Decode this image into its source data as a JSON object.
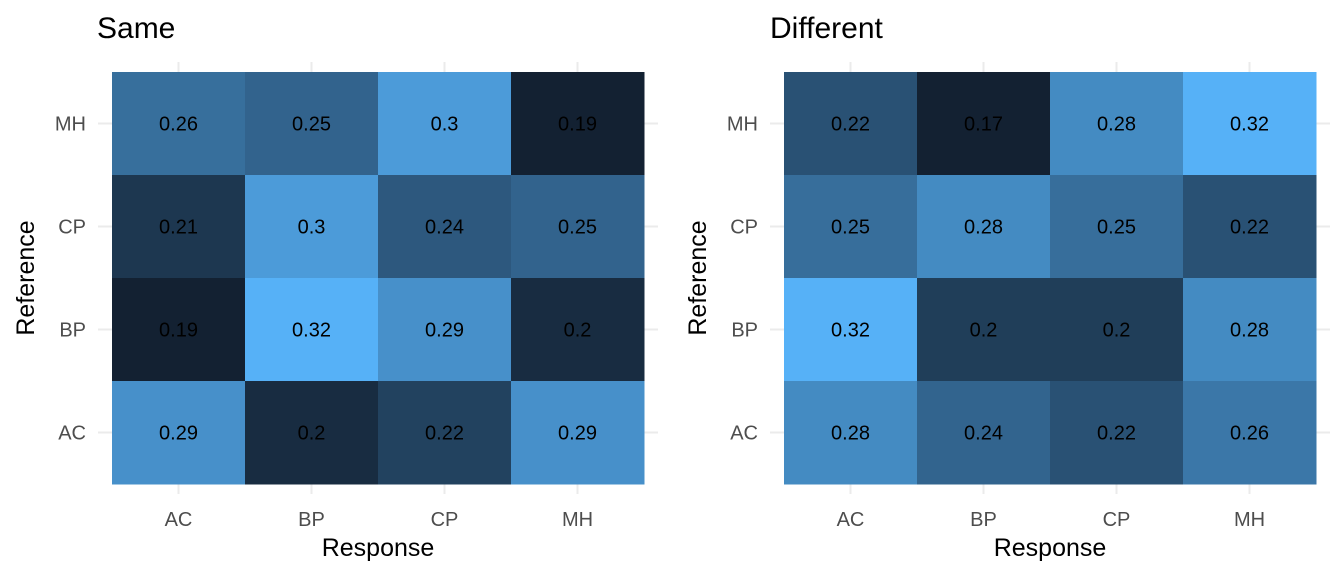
{
  "chart_data": [
    {
      "type": "heatmap",
      "title": "Same",
      "xlabel": "Response",
      "ylabel": "Reference",
      "x_categories": [
        "AC",
        "BP",
        "CP",
        "MH"
      ],
      "y_categories": [
        "AC",
        "BP",
        "CP",
        "MH"
      ],
      "fill_low": "#132132",
      "fill_high": "#56b1f7",
      "cells": [
        {
          "x": "AC",
          "y": "MH",
          "value": 0.26
        },
        {
          "x": "BP",
          "y": "MH",
          "value": 0.25
        },
        {
          "x": "CP",
          "y": "MH",
          "value": 0.3
        },
        {
          "x": "MH",
          "y": "MH",
          "value": 0.19
        },
        {
          "x": "AC",
          "y": "CP",
          "value": 0.21
        },
        {
          "x": "BP",
          "y": "CP",
          "value": 0.3
        },
        {
          "x": "CP",
          "y": "CP",
          "value": 0.24
        },
        {
          "x": "MH",
          "y": "CP",
          "value": 0.25
        },
        {
          "x": "AC",
          "y": "BP",
          "value": 0.19
        },
        {
          "x": "BP",
          "y": "BP",
          "value": 0.32
        },
        {
          "x": "CP",
          "y": "BP",
          "value": 0.29
        },
        {
          "x": "MH",
          "y": "BP",
          "value": 0.2
        },
        {
          "x": "AC",
          "y": "AC",
          "value": 0.29
        },
        {
          "x": "BP",
          "y": "AC",
          "value": 0.2
        },
        {
          "x": "CP",
          "y": "AC",
          "value": 0.22
        },
        {
          "x": "MH",
          "y": "AC",
          "value": 0.29
        }
      ]
    },
    {
      "type": "heatmap",
      "title": "Different",
      "xlabel": "Response",
      "ylabel": "Reference",
      "x_categories": [
        "AC",
        "BP",
        "CP",
        "MH"
      ],
      "y_categories": [
        "AC",
        "BP",
        "CP",
        "MH"
      ],
      "fill_low": "#132132",
      "fill_high": "#56b1f7",
      "cells": [
        {
          "x": "AC",
          "y": "MH",
          "value": 0.22
        },
        {
          "x": "BP",
          "y": "MH",
          "value": 0.17
        },
        {
          "x": "CP",
          "y": "MH",
          "value": 0.28
        },
        {
          "x": "MH",
          "y": "MH",
          "value": 0.32
        },
        {
          "x": "AC",
          "y": "CP",
          "value": 0.25
        },
        {
          "x": "BP",
          "y": "CP",
          "value": 0.28
        },
        {
          "x": "CP",
          "y": "CP",
          "value": 0.25
        },
        {
          "x": "MH",
          "y": "CP",
          "value": 0.22
        },
        {
          "x": "AC",
          "y": "BP",
          "value": 0.32
        },
        {
          "x": "BP",
          "y": "BP",
          "value": 0.2
        },
        {
          "x": "CP",
          "y": "BP",
          "value": 0.2
        },
        {
          "x": "MH",
          "y": "BP",
          "value": 0.28
        },
        {
          "x": "AC",
          "y": "AC",
          "value": 0.28
        },
        {
          "x": "BP",
          "y": "AC",
          "value": 0.24
        },
        {
          "x": "CP",
          "y": "AC",
          "value": 0.22
        },
        {
          "x": "MH",
          "y": "AC",
          "value": 0.26
        }
      ]
    }
  ]
}
